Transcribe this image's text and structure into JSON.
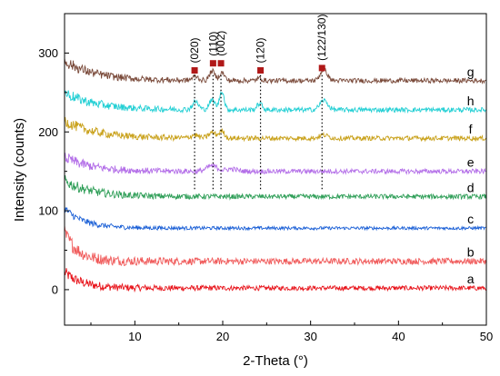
{
  "chart_data": {
    "type": "line",
    "xlabel": "2-Theta (°)",
    "ylabel": "Intensity (counts)",
    "xlim": [
      2,
      50
    ],
    "ylim": [
      -45,
      350
    ],
    "xticks": [
      10,
      20,
      30,
      40,
      50
    ],
    "yticks": [
      0,
      100,
      200,
      300
    ],
    "grid": false,
    "legend": "none; series letters printed at right end of each curve",
    "series": [
      {
        "name": "a",
        "color": "#e8141b",
        "baseline": 2,
        "start": 22,
        "decay": 2.0,
        "noise": 3,
        "peaks": []
      },
      {
        "name": "b",
        "color": "#f05a5a",
        "baseline": 36,
        "start": 72,
        "decay": 1.6,
        "noise": 4,
        "peaks": []
      },
      {
        "name": "c",
        "color": "#1a5fd6",
        "baseline": 78,
        "start": 103,
        "decay": 2.2,
        "noise": 2,
        "peaks": []
      },
      {
        "name": "d",
        "color": "#2e9e57",
        "baseline": 118,
        "start": 138,
        "decay": 3.0,
        "noise": 3,
        "peaks": []
      },
      {
        "name": "e",
        "color": "#b36ee8",
        "baseline": 150,
        "start": 168,
        "decay": 3.0,
        "noise": 3,
        "peaks": [
          [
            18.8,
            7,
            0.6
          ],
          [
            21.0,
            3,
            0.6
          ]
        ]
      },
      {
        "name": "f",
        "color": "#c9a11a",
        "baseline": 192,
        "start": 214,
        "decay": 3.5,
        "noise": 3,
        "peaks": [
          [
            16.8,
            4,
            0.4
          ],
          [
            18.8,
            7,
            0.4
          ],
          [
            19.9,
            9,
            0.3
          ],
          [
            31.5,
            4,
            0.5
          ]
        ]
      },
      {
        "name": "h",
        "color": "#22cfd4",
        "baseline": 228,
        "start": 250,
        "decay": 3.5,
        "noise": 3,
        "peaks": [
          [
            16.9,
            10,
            0.35
          ],
          [
            18.8,
            12,
            0.35
          ],
          [
            19.9,
            24,
            0.25
          ],
          [
            24.2,
            8,
            0.3
          ],
          [
            31.5,
            12,
            0.45
          ]
        ]
      },
      {
        "name": "g",
        "color": "#7a4a3a",
        "baseline": 265,
        "start": 290,
        "decay": 3.5,
        "noise": 3,
        "peaks": [
          [
            16.9,
            5,
            0.35
          ],
          [
            18.8,
            12,
            0.3
          ],
          [
            19.9,
            10,
            0.3
          ],
          [
            24.2,
            3,
            0.3
          ],
          [
            31.5,
            14,
            0.4
          ]
        ]
      }
    ],
    "peak_markers": [
      {
        "label": "(020)",
        "x": 16.8,
        "y": 278
      },
      {
        "label": "(110)",
        "x": 18.9,
        "y": 287
      },
      {
        "label": "(002)",
        "x": 19.8,
        "y": 287
      },
      {
        "label": "(120)",
        "x": 24.3,
        "y": 278
      },
      {
        "label": "(122/130)",
        "x": 31.3,
        "y": 281
      }
    ],
    "reference_lines": [
      16.8,
      18.9,
      19.8,
      24.3,
      31.3
    ],
    "reference_line_range": [
      125,
      272
    ],
    "marker_color": "#b01818"
  }
}
